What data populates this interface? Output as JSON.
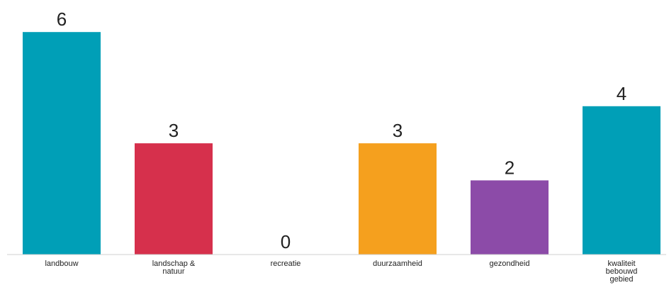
{
  "chart_data": {
    "type": "bar",
    "categories": [
      [
        "landbouw"
      ],
      [
        "landschap &",
        "natuur"
      ],
      [
        "recreatie"
      ],
      [
        "duurzaamheid"
      ],
      [
        "gezondheid"
      ],
      [
        "kwaliteit",
        "bebouwd",
        "gebied"
      ]
    ],
    "values": [
      6,
      3,
      0,
      3,
      2,
      4
    ],
    "data_labels": [
      "6",
      "3",
      "0",
      "3",
      "2",
      "4"
    ],
    "colors": [
      "#009fb7",
      "#d6304c",
      "#009fb7",
      "#f5a01e",
      "#8c4ba8",
      "#009fb7"
    ],
    "title": "",
    "xlabel": "",
    "ylabel": "",
    "ylim": [
      0,
      6
    ],
    "grid": false,
    "legend": "none",
    "axis_color": "#d0d0d0"
  }
}
